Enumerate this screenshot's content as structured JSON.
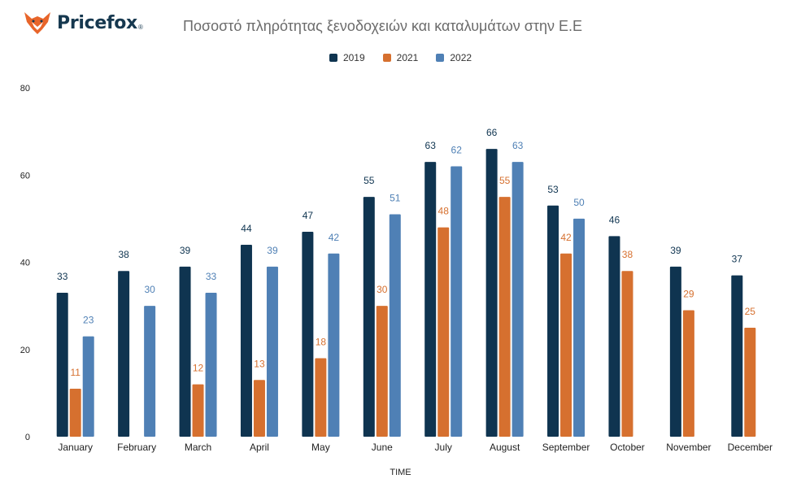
{
  "brand": {
    "name": "Pricefox",
    "mark": "®",
    "icon": "fox-logo-icon",
    "color": "#e8652a"
  },
  "chart_data": {
    "type": "bar",
    "title": "Ποσοστό πληρότητας ξενοδοχειών και καταλυμάτων στην Ε.Ε",
    "xlabel": "TIME",
    "ylabel": "",
    "ylim": [
      0,
      80
    ],
    "yticks": [
      0,
      20,
      40,
      60,
      80
    ],
    "grid": false,
    "legend_position": "top-center",
    "categories": [
      "January",
      "February",
      "March",
      "April",
      "May",
      "June",
      "July",
      "August",
      "September",
      "October",
      "November",
      "December"
    ],
    "series": [
      {
        "name": "2019",
        "color": "#0f3450",
        "values": [
          33,
          38,
          39,
          44,
          47,
          55,
          63,
          66,
          53,
          46,
          39,
          37
        ]
      },
      {
        "name": "2021",
        "color": "#d6702f",
        "values": [
          11,
          null,
          12,
          13,
          18,
          30,
          48,
          55,
          42,
          38,
          29,
          25
        ]
      },
      {
        "name": "2022",
        "color": "#4f80b5",
        "values": [
          23,
          30,
          33,
          39,
          42,
          51,
          62,
          63,
          50,
          null,
          null,
          null
        ]
      }
    ]
  }
}
